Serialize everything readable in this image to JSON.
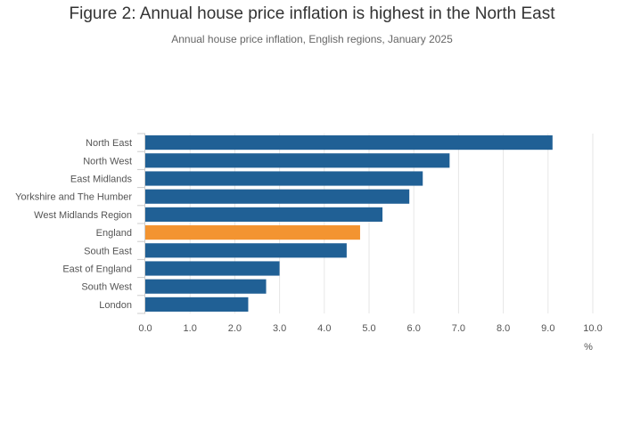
{
  "chart_data": {
    "type": "bar",
    "orientation": "horizontal",
    "title": "Figure 2: Annual house price inflation is highest in the North East",
    "subtitle": "Annual house price inflation, English regions, January 2025",
    "xlabel": "%",
    "ylabel": "",
    "categories": [
      "North East",
      "North West",
      "East Midlands",
      "Yorkshire and The Humber",
      "West Midlands Region",
      "England",
      "South East",
      "East of England",
      "South West",
      "London"
    ],
    "values": [
      9.1,
      6.8,
      6.2,
      5.9,
      5.3,
      4.8,
      4.5,
      3.0,
      2.7,
      2.3
    ],
    "highlight": "England",
    "xlim": [
      0,
      10
    ],
    "x_ticks": [
      "0.0",
      "1.0",
      "2.0",
      "3.0",
      "4.0",
      "5.0",
      "6.0",
      "7.0",
      "8.0",
      "9.0",
      "10.0"
    ],
    "grid": true,
    "colors": {
      "bar": "#206095",
      "highlight": "#f39431",
      "grid": "#e6e6e6"
    }
  }
}
